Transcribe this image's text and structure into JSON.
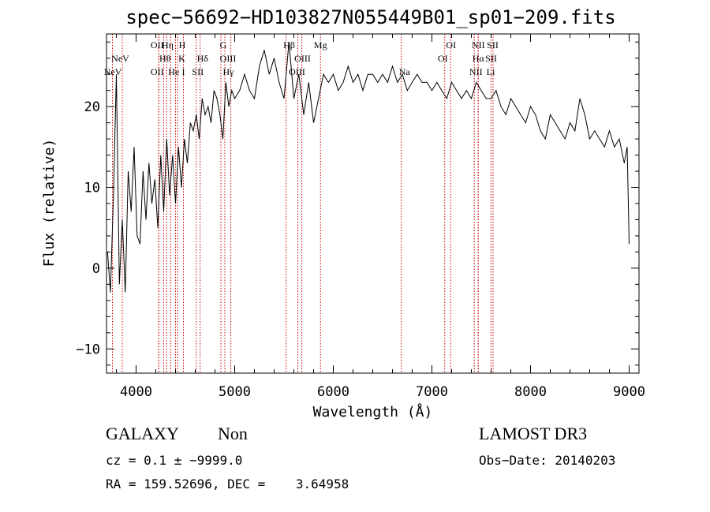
{
  "title": "spec−56692−HD103827N055449B01_sp01−209.fits",
  "info": {
    "class": "GALAXY",
    "subclass": "Non",
    "survey": "LAMOST DR3",
    "cz": "cz = 0.1 ± −9999.0",
    "obs_date": "Obs−Date: 20140203",
    "radec": "RA = 159.52696, DEC =    3.64958"
  },
  "colors": {
    "spectrum": "#000000",
    "line_marker": "#cc0000",
    "axes": "#000000"
  },
  "chart_data": {
    "type": "line",
    "title": "spec−56692−HD103827N055449B01_sp01−209.fits",
    "xlabel": "Wavelength (Å)",
    "ylabel": "Flux (relative)",
    "xlim": [
      3700,
      9100
    ],
    "ylim": [
      -13,
      29
    ],
    "xticks": [
      4000,
      5000,
      6000,
      7000,
      8000,
      9000
    ],
    "yticks": [
      -10,
      0,
      10,
      20
    ],
    "ytick_labels": [
      "−10",
      "0",
      "10",
      "20"
    ],
    "grid": false,
    "spectrum": {
      "x": [
        3710,
        3740,
        3770,
        3800,
        3830,
        3860,
        3890,
        3920,
        3950,
        3980,
        4010,
        4040,
        4070,
        4100,
        4130,
        4160,
        4190,
        4220,
        4250,
        4280,
        4310,
        4340,
        4370,
        4400,
        4430,
        4460,
        4490,
        4520,
        4550,
        4580,
        4610,
        4640,
        4670,
        4700,
        4730,
        4760,
        4790,
        4820,
        4850,
        4880,
        4910,
        4940,
        4970,
        5000,
        5050,
        5100,
        5150,
        5200,
        5250,
        5300,
        5350,
        5400,
        5450,
        5500,
        5550,
        5600,
        5650,
        5700,
        5750,
        5800,
        5850,
        5900,
        5950,
        6000,
        6050,
        6100,
        6150,
        6200,
        6250,
        6300,
        6350,
        6400,
        6450,
        6500,
        6550,
        6600,
        6650,
        6700,
        6750,
        6800,
        6850,
        6900,
        6950,
        7000,
        7050,
        7100,
        7150,
        7200,
        7250,
        7300,
        7350,
        7400,
        7450,
        7500,
        7550,
        7600,
        7650,
        7700,
        7750,
        7800,
        7850,
        7900,
        7950,
        8000,
        8050,
        8100,
        8150,
        8200,
        8250,
        8300,
        8350,
        8400,
        8450,
        8500,
        8550,
        8600,
        8650,
        8700,
        8750,
        8800,
        8850,
        8900,
        8950,
        8980,
        9000
      ],
      "y": [
        2,
        -3,
        9,
        24,
        -2,
        6,
        -3,
        12,
        7,
        15,
        4,
        3,
        12,
        6,
        13,
        8,
        11,
        5,
        14,
        7,
        16,
        9,
        14,
        8,
        15,
        10,
        16,
        13,
        18,
        17,
        19,
        16,
        21,
        19,
        20,
        18,
        22,
        21,
        19,
        16,
        23,
        20,
        22,
        21,
        22,
        24,
        22,
        21,
        25,
        27,
        24,
        26,
        23,
        21,
        28,
        21,
        24,
        19,
        23,
        18,
        21,
        24,
        23,
        24,
        22,
        23,
        25,
        23,
        24,
        22,
        24,
        24,
        23,
        24,
        23,
        25,
        23,
        24,
        22,
        23,
        24,
        23,
        23,
        22,
        23,
        22,
        21,
        23,
        22,
        21,
        22,
        21,
        23,
        22,
        21,
        21,
        22,
        20,
        19,
        21,
        20,
        19,
        18,
        20,
        19,
        17,
        16,
        19,
        18,
        17,
        16,
        18,
        17,
        21,
        19,
        16,
        17,
        16,
        15,
        17,
        15,
        16,
        13,
        15,
        3
      ]
    },
    "lines": [
      {
        "label": "NeV",
        "wl": 3760,
        "row": 1,
        "dx": 10
      },
      {
        "label": "NeV",
        "wl": 3860,
        "row": 2,
        "dx": -12
      },
      {
        "label": "OII",
        "wl": 4230,
        "row": 0,
        "dx": -2
      },
      {
        "label": "OII",
        "wl": 4230,
        "row": 2,
        "dx": -2
      },
      {
        "label": "Hη",
        "wl": 4280,
        "row": 0,
        "dx": 5
      },
      {
        "label": "Hθ",
        "wl": 4310,
        "row": 1,
        "dx": -2
      },
      {
        "label": "He",
        "wl": 4350,
        "row": 2,
        "dx": 4
      },
      {
        "label": "H",
        "wl": 4420,
        "row": 0,
        "dx": 6
      },
      {
        "label": "K",
        "wl": 4400,
        "row": 1,
        "dx": 8
      },
      {
        "label": "I",
        "wl": 4480,
        "row": 2,
        "dx": 0
      },
      {
        "label": "Hδ",
        "wl": 4610,
        "row": 1,
        "dx": 8
      },
      {
        "label": "SII",
        "wl": 4650,
        "row": 2,
        "dx": -3
      },
      {
        "label": "G",
        "wl": 4860,
        "row": 0,
        "dx": 3
      },
      {
        "label": "OIII",
        "wl": 4900,
        "row": 1,
        "dx": 4
      },
      {
        "label": "Hγ",
        "wl": 4960,
        "row": 2,
        "dx": -3
      },
      {
        "label": "Hβ",
        "wl": 5520,
        "row": 0,
        "dx": 4
      },
      {
        "label": "OIII",
        "wl": 5640,
        "row": 1,
        "dx": 6
      },
      {
        "label": "OIII",
        "wl": 5680,
        "row": 2,
        "dx": -6
      },
      {
        "label": "Mg",
        "wl": 5870,
        "row": 0,
        "dx": 0
      },
      {
        "label": "Na",
        "wl": 6690,
        "row": 2,
        "dx": 4
      },
      {
        "label": "OI",
        "wl": 7130,
        "row": 0,
        "dx": 8
      },
      {
        "label": "OI",
        "wl": 7190,
        "row": 1,
        "dx": -10
      },
      {
        "label": "NII",
        "wl": 7430,
        "row": 0,
        "dx": 5
      },
      {
        "label": "Hα",
        "wl": 7470,
        "row": 1,
        "dx": 0
      },
      {
        "label": "NII",
        "wl": 7470,
        "row": 2,
        "dx": -3
      },
      {
        "label": "SII",
        "wl": 7600,
        "row": 0,
        "dx": 2
      },
      {
        "label": "SII",
        "wl": 7600,
        "row": 1,
        "dx": 0
      },
      {
        "label": "Li",
        "wl": 7620,
        "row": 2,
        "dx": -3
      }
    ]
  }
}
